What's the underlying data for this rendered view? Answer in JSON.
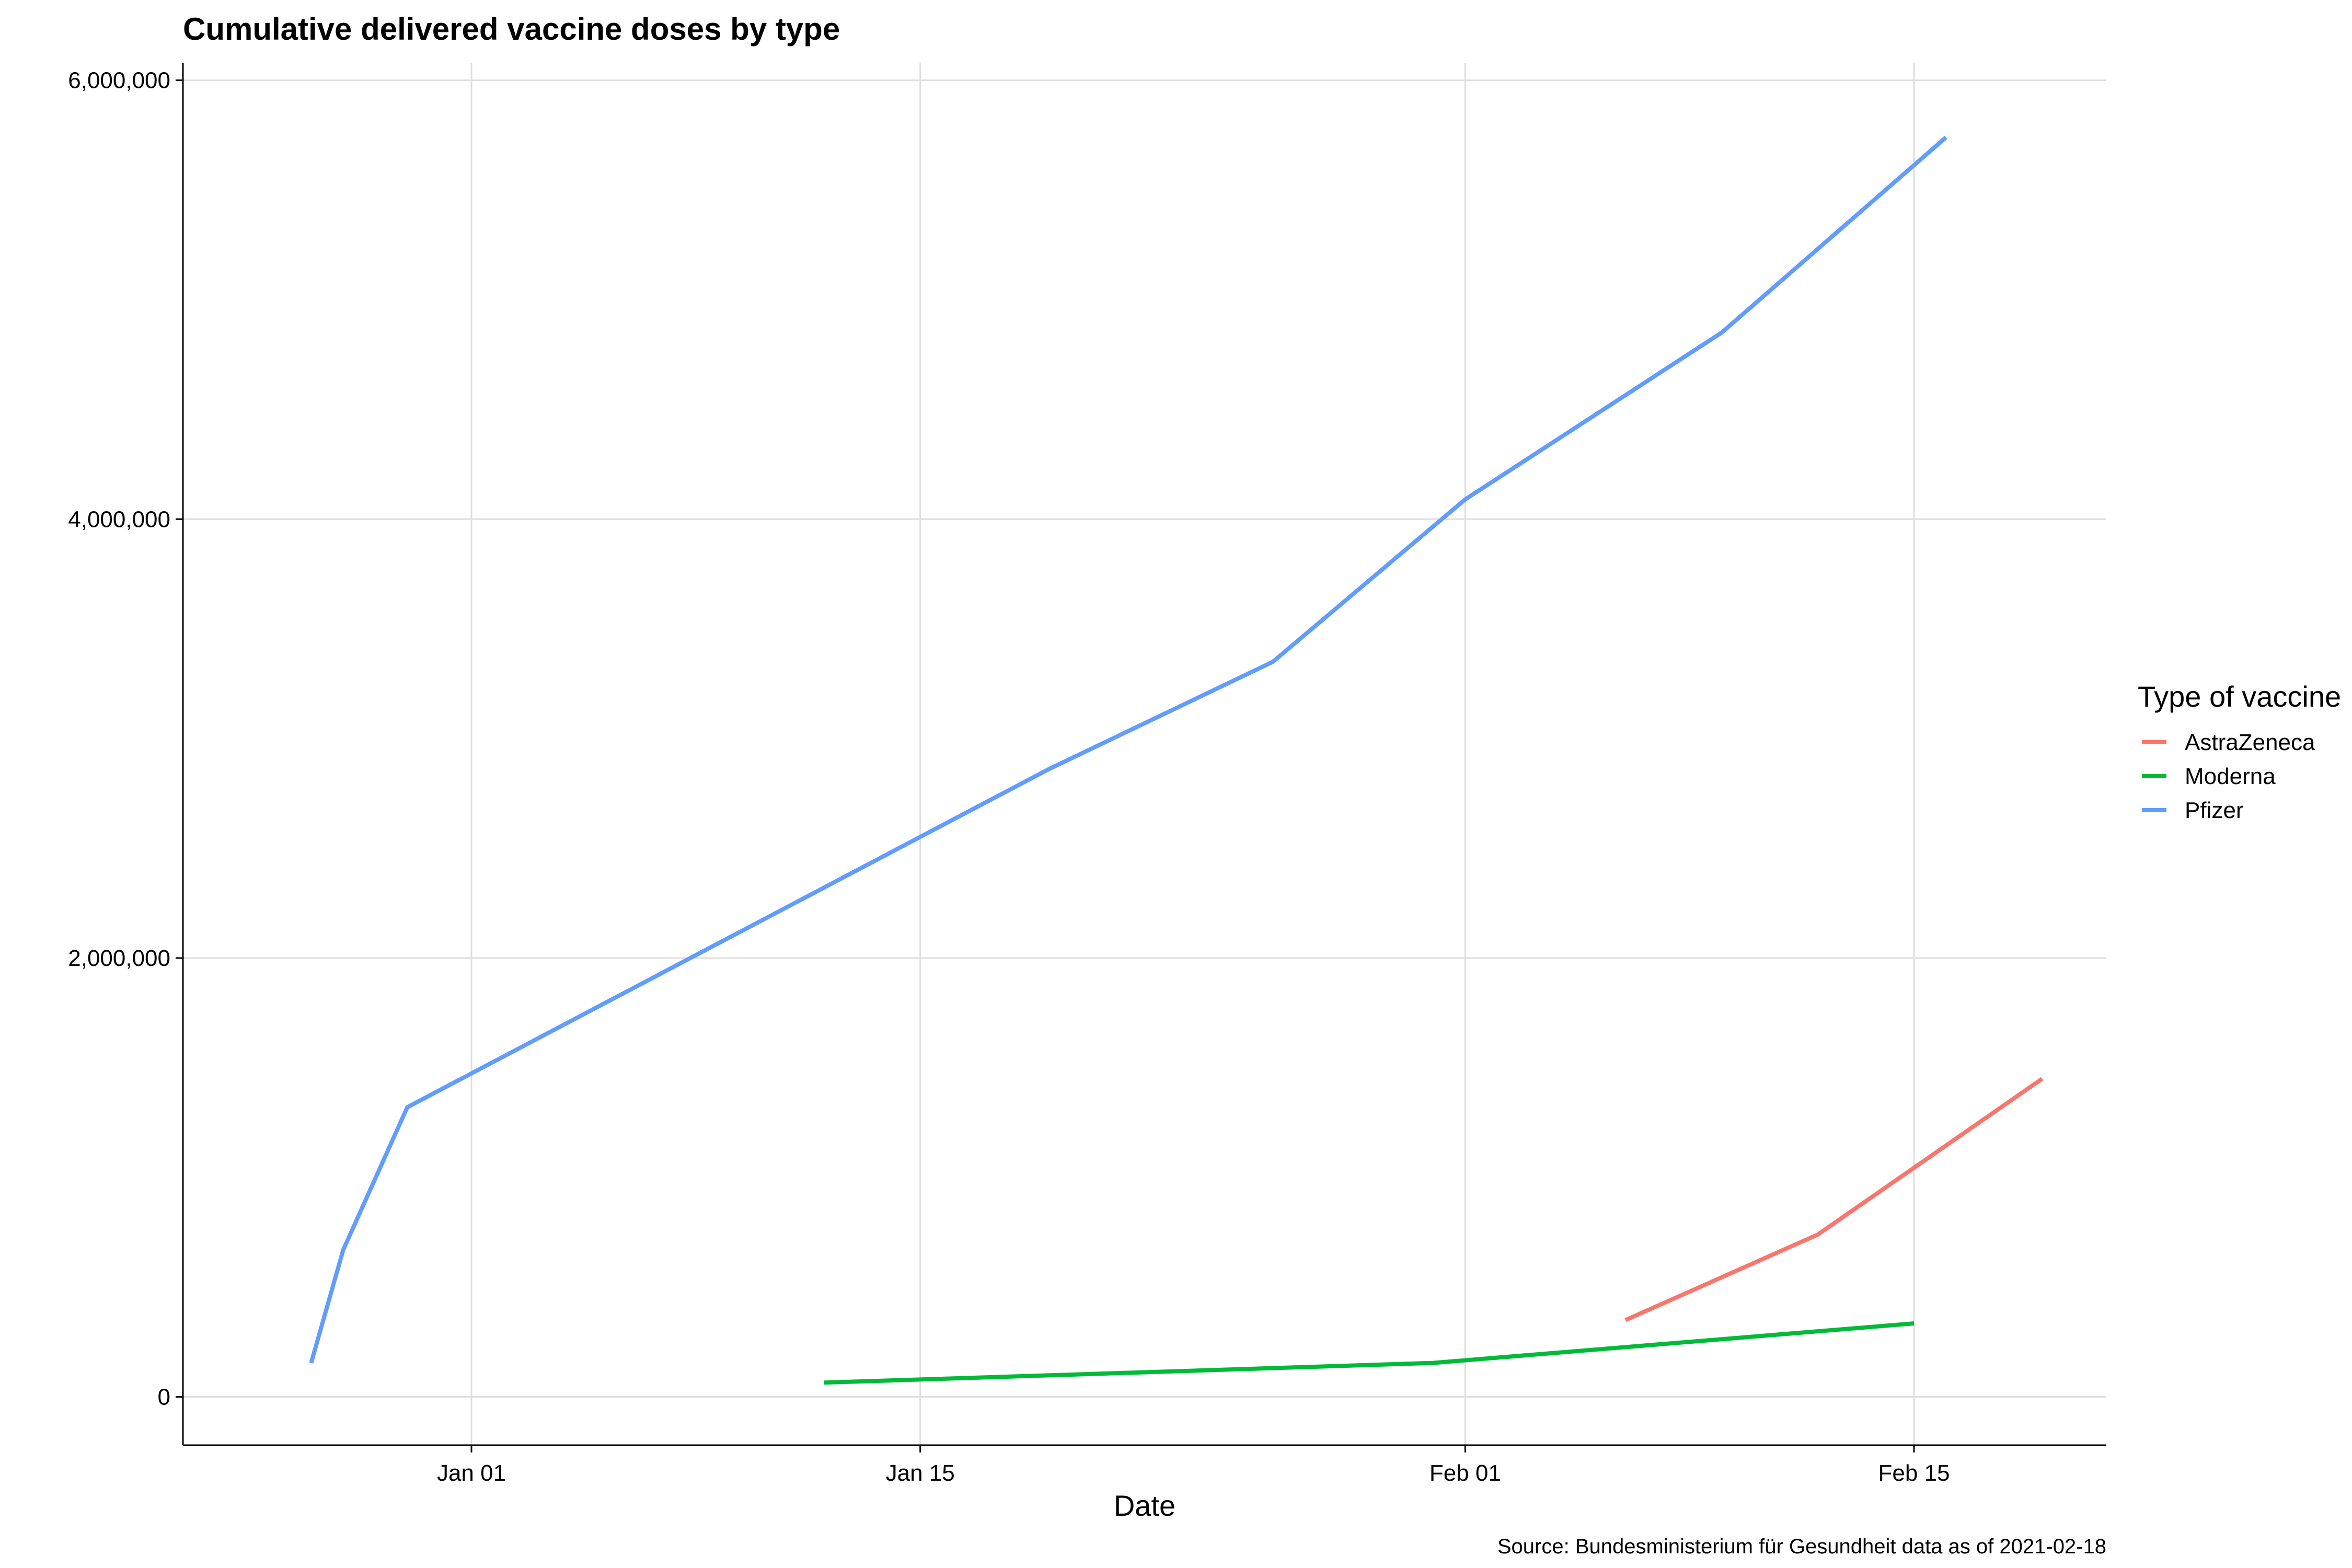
{
  "chart_data": {
    "type": "line",
    "title": "Cumulative delivered vaccine doses by type",
    "xlabel": "Date",
    "ylabel": "",
    "caption": "Source: Bundesministerium für Gesundheit data as of 2021-02-18",
    "legend": {
      "title": "Type of vaccine",
      "position": "right"
    },
    "grid": true,
    "x_type": "date",
    "xlim": [
      "2020-12-23",
      "2021-02-21"
    ],
    "ylim": [
      -220000,
      6080000
    ],
    "x_ticks": [
      {
        "date": "2021-01-01",
        "label": "Jan 01"
      },
      {
        "date": "2021-01-15",
        "label": "Jan 15"
      },
      {
        "date": "2021-02-01",
        "label": "Feb 01"
      },
      {
        "date": "2021-02-15",
        "label": "Feb 15"
      }
    ],
    "y_ticks": [
      {
        "value": 0,
        "label": "0"
      },
      {
        "value": 2000000,
        "label": "2,000,000"
      },
      {
        "value": 4000000,
        "label": "4,000,000"
      },
      {
        "value": 6000000,
        "label": "6,000,000"
      }
    ],
    "series": [
      {
        "name": "AstraZeneca",
        "color": "#F8766D",
        "points": [
          {
            "x": "2021-02-06",
            "y": 350000
          },
          {
            "x": "2021-02-12",
            "y": 740000
          },
          {
            "x": "2021-02-19",
            "y": 1450000
          }
        ]
      },
      {
        "name": "Moderna",
        "color": "#00BA38",
        "points": [
          {
            "x": "2021-01-12",
            "y": 65000
          },
          {
            "x": "2021-01-31",
            "y": 155000
          },
          {
            "x": "2021-02-15",
            "y": 335000
          }
        ]
      },
      {
        "name": "Pfizer",
        "color": "#619CFF",
        "points": [
          {
            "x": "2020-12-27",
            "y": 155000
          },
          {
            "x": "2020-12-28",
            "y": 670000
          },
          {
            "x": "2020-12-30",
            "y": 1320000
          },
          {
            "x": "2021-01-19",
            "y": 2860000
          },
          {
            "x": "2021-01-26",
            "y": 3350000
          },
          {
            "x": "2021-02-01",
            "y": 4090000
          },
          {
            "x": "2021-02-09",
            "y": 4850000
          },
          {
            "x": "2021-02-16",
            "y": 5740000
          }
        ]
      }
    ]
  }
}
